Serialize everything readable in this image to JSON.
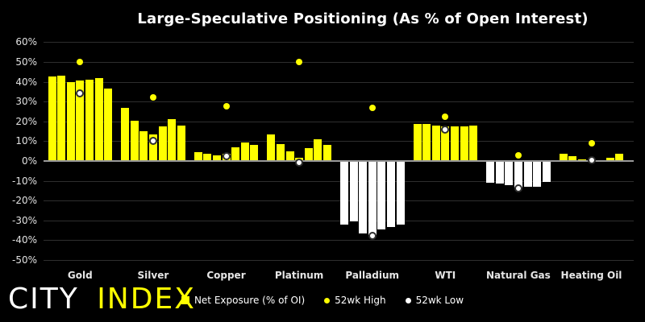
{
  "title": "Large-Speculative Positioning (As % of Open Interest)",
  "logo": {
    "city": "CITY",
    "index": "INDEX"
  },
  "legend": {
    "items": [
      {
        "label": "Net Exposure (% of OI)",
        "marker": "square",
        "color": "#ffff00"
      },
      {
        "label": "52wk High",
        "marker": "dot",
        "color": "#ffff00"
      },
      {
        "label": "52wk Low",
        "marker": "dot",
        "color": "#ffffff"
      }
    ]
  },
  "colors": {
    "background": "#000000",
    "bar_positive": "#ffff00",
    "bar_negative": "#ffffff",
    "high_dot": "#ffff00",
    "low_dot": "#ffffff",
    "low_dot_ring": "#2e2e2e",
    "gridline": "#2e2e2e",
    "zero_line": "#999999",
    "text": "#ffffff"
  },
  "chart_data": {
    "type": "bar",
    "title": "Large-Speculative Positioning (As % of Open Interest)",
    "unit": "%",
    "ylim": [
      -55,
      65
    ],
    "grid": true,
    "legend_position": "bottom",
    "bars_per_category": 7,
    "yticks": [
      {
        "value": 60,
        "label": "60%"
      },
      {
        "value": 50,
        "label": "50%"
      },
      {
        "value": 40,
        "label": "40%"
      },
      {
        "value": 30,
        "label": "30%"
      },
      {
        "value": 20,
        "label": "20%"
      },
      {
        "value": 10,
        "label": "10%"
      },
      {
        "value": 0,
        "label": "0%"
      },
      {
        "value": -10,
        "label": "-10%"
      },
      {
        "value": -20,
        "label": "-20%"
      },
      {
        "value": -30,
        "label": "-30%"
      },
      {
        "value": -40,
        "label": "-40%"
      },
      {
        "value": -50,
        "label": "-50%"
      }
    ],
    "categories": [
      "Gold",
      "Silver",
      "Copper",
      "Platinum",
      "Palladium",
      "WTI",
      "Natural Gas",
      "Heating Oil"
    ],
    "groups": [
      {
        "category": "Gold",
        "net_exposure": [
          42.5,
          43,
          40,
          40.5,
          41,
          42,
          36.5
        ],
        "high_52wk": 50,
        "low_52wk": 34
      },
      {
        "category": "Silver",
        "net_exposure": [
          27,
          20.5,
          15,
          13.5,
          17.5,
          21,
          18
        ],
        "high_52wk": 32,
        "low_52wk": 10
      },
      {
        "category": "Copper",
        "net_exposure": [
          4.5,
          3.5,
          3,
          3.5,
          7,
          9.5,
          8
        ],
        "high_52wk": 27.5,
        "low_52wk": 2.5
      },
      {
        "category": "Platinum",
        "net_exposure": [
          13.5,
          8.5,
          5,
          1.5,
          6.5,
          11,
          8
        ],
        "high_52wk": 50,
        "low_52wk": -1
      },
      {
        "category": "Palladium",
        "net_exposure": [
          -32,
          -30.5,
          -36.5,
          -37.5,
          -34.5,
          -33.5,
          -32
        ],
        "high_52wk": 27,
        "low_52wk": -38
      },
      {
        "category": "WTI",
        "net_exposure": [
          18.5,
          18.5,
          18,
          17.5,
          17.5,
          17.5,
          18
        ],
        "high_52wk": 22.5,
        "low_52wk": 16
      },
      {
        "category": "Natural Gas",
        "net_exposure": [
          -11,
          -11.5,
          -12,
          -13.5,
          -13,
          -13,
          -10.5
        ],
        "high_52wk": 3,
        "low_52wk": -14
      },
      {
        "category": "Heating Oil",
        "net_exposure": [
          3.5,
          2.5,
          1,
          0.5,
          0.5,
          1.5,
          3.5
        ],
        "high_52wk": 9,
        "low_52wk": 0.5
      }
    ]
  }
}
